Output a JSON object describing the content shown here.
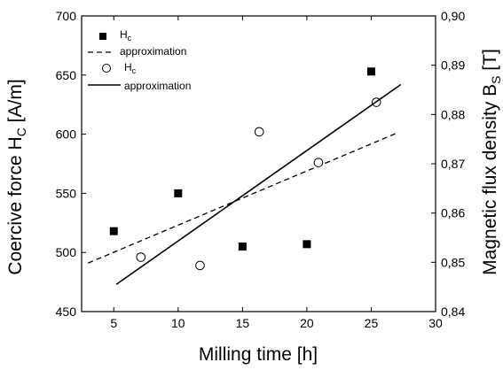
{
  "chart_data": {
    "type": "scatter",
    "xlabel": "Milling time [h]",
    "ylabel_left": {
      "main": "Coercive force H",
      "sub": "C",
      "unit": " [A/m]"
    },
    "ylabel_right": {
      "main": "Magnetic flux density B",
      "sub": "S",
      "unit": " [T]"
    },
    "xlim": [
      2.5,
      30
    ],
    "ylim_left": [
      450,
      700
    ],
    "ylim_right": [
      0.84,
      0.9
    ],
    "x_ticks": [
      "5",
      "10",
      "15",
      "20",
      "25",
      "30"
    ],
    "y_left_ticks": [
      "450",
      "500",
      "550",
      "600",
      "650",
      "700"
    ],
    "y_right_ticks": [
      "0,84",
      "0,85",
      "0,86",
      "0,87",
      "0,88",
      "0,89",
      "0,90"
    ],
    "grid": false,
    "legend_position": "top-left",
    "series": [
      {
        "name": "Hc",
        "legend_main": "H",
        "legend_sub": "c",
        "marker": "filled-square",
        "axis": "left",
        "x": [
          5,
          10,
          15,
          20,
          25
        ],
        "y": [
          518,
          550,
          505,
          507,
          653
        ]
      },
      {
        "name": "approximation",
        "legend_main": "approximation",
        "marker": "dashed-line",
        "axis": "left",
        "x": [
          3,
          27
        ],
        "y": [
          491,
          601
        ]
      },
      {
        "name": "Hc",
        "legend_main": "H",
        "legend_sub": "c",
        "marker": "open-circle",
        "axis": "left",
        "x": [
          7.1,
          11.7,
          16.3,
          20.9,
          25.4
        ],
        "y": [
          496,
          489,
          602,
          576,
          627
        ]
      },
      {
        "name": "approximation",
        "legend_main": "approximation",
        "marker": "solid-line",
        "axis": "left",
        "x": [
          5.2,
          27.3
        ],
        "y": [
          473,
          642
        ]
      }
    ]
  }
}
